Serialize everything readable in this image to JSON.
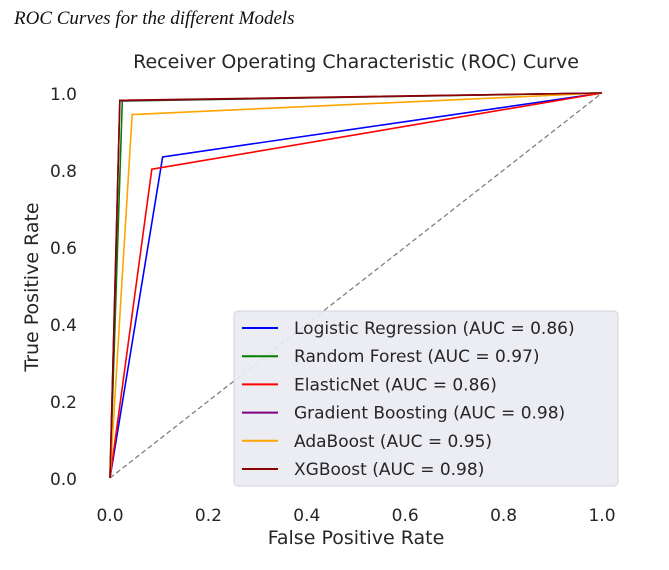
{
  "caption": "ROC Curves for the different Models",
  "chart_data": {
    "type": "line",
    "title": "Receiver Operating Characteristic (ROC) Curve",
    "xlabel": "False Positive Rate",
    "ylabel": "True Positive Rate",
    "xlim": [
      0.0,
      1.0
    ],
    "ylim": [
      0.0,
      1.0
    ],
    "xticks": [
      "0.0",
      "0.2",
      "0.4",
      "0.6",
      "0.8",
      "1.0"
    ],
    "yticks": [
      "0.0",
      "0.2",
      "0.4",
      "0.6",
      "0.8",
      "1.0"
    ],
    "grid": false,
    "legend_position": "lower-right",
    "series": [
      {
        "name": "Logistic Regression (AUC = 0.86)",
        "color": "#0000ff",
        "x": [
          0.0,
          0.107,
          1.0
        ],
        "y": [
          0.0,
          0.834,
          1.0
        ]
      },
      {
        "name": "Random Forest (AUC = 0.97)",
        "color": "#008000",
        "x": [
          0.0,
          0.025,
          1.0
        ],
        "y": [
          0.0,
          0.979,
          1.0
        ]
      },
      {
        "name": "ElasticNet (AUC = 0.86)",
        "color": "#ff0000",
        "x": [
          0.0,
          0.085,
          1.0
        ],
        "y": [
          0.0,
          0.802,
          1.0
        ]
      },
      {
        "name": "Gradient Boosting (AUC = 0.98)",
        "color": "#800080",
        "x": [
          0.0,
          0.02,
          1.0
        ],
        "y": [
          0.0,
          0.98,
          1.0
        ]
      },
      {
        "name": "AdaBoost (AUC = 0.95)",
        "color": "#ffa500",
        "x": [
          0.0,
          0.045,
          1.0
        ],
        "y": [
          0.0,
          0.944,
          1.0
        ]
      },
      {
        "name": "XGBoost (AUC = 0.98)",
        "color": "#8b0000",
        "x": [
          0.0,
          0.02,
          1.0
        ],
        "y": [
          0.0,
          0.981,
          1.0
        ]
      }
    ],
    "reference_line": {
      "x": [
        0.0,
        1.0
      ],
      "y": [
        0.0,
        1.0
      ],
      "style": "dashed",
      "color": "#808080"
    }
  }
}
